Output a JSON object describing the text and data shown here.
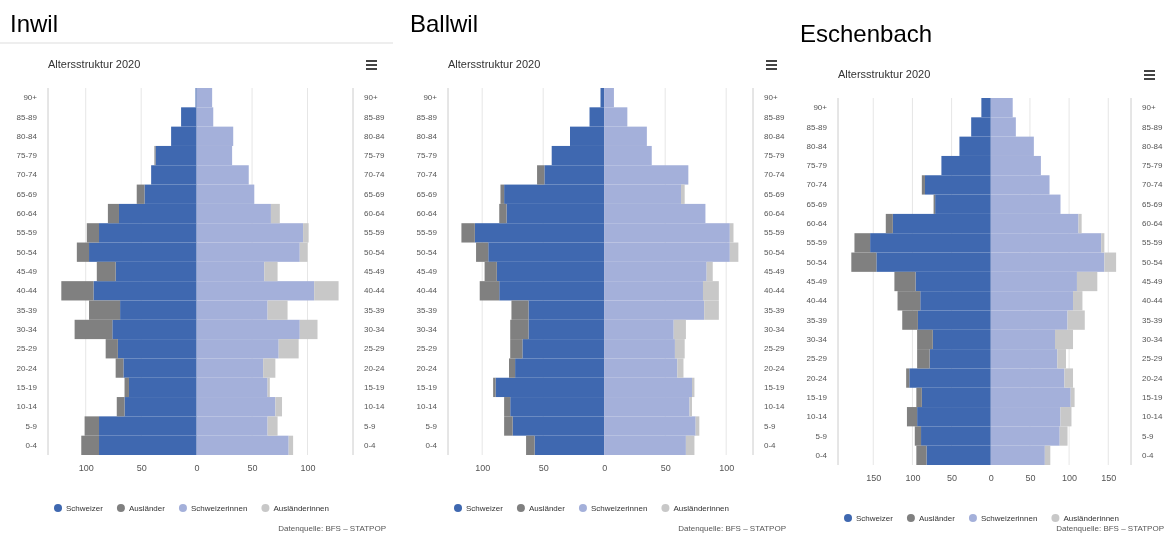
{
  "chart_data": [
    {
      "type": "bar",
      "orientation": "horizontal",
      "stacked": true,
      "title": "Inwil",
      "subtitle": "Altersstruktur 2020",
      "legend": "bottom",
      "grid": "x",
      "categories": [
        "90+",
        "85-89",
        "80-84",
        "75-79",
        "70-74",
        "65-69",
        "60-64",
        "55-59",
        "50-54",
        "45-49",
        "40-44",
        "35-39",
        "30-34",
        "25-29",
        "20-24",
        "15-19",
        "10-14",
        "5-9",
        "0-4"
      ],
      "xlim": [
        -134,
        141
      ],
      "xticks": [
        {
          "value": -100,
          "label": "100"
        },
        {
          "value": -50,
          "label": "50"
        },
        0,
        50,
        100
      ],
      "series": [
        {
          "name": "Schweizer",
          "color": "#3f68b0",
          "values": [
            -1,
            -14,
            -23,
            -37,
            -41,
            -47,
            -70,
            -88,
            -97,
            -73,
            -93,
            -69,
            -76,
            -71,
            -66,
            -61,
            -65,
            -88,
            -88
          ]
        },
        {
          "name": "Ausländer",
          "color": "#808080",
          "values": [
            0,
            0,
            0,
            -1,
            0,
            -7,
            -10,
            -11,
            -11,
            -17,
            -29,
            -28,
            -34,
            -11,
            -7,
            -4,
            -7,
            -13,
            -16
          ]
        },
        {
          "name": "Schweizerinnen",
          "color": "#a4b0da",
          "values": [
            14,
            15,
            33,
            32,
            47,
            52,
            67,
            96,
            93,
            61,
            106,
            64,
            93,
            74,
            60,
            64,
            71,
            64,
            83
          ]
        },
        {
          "name": "Ausländerinnen",
          "color": "#c8c8c8",
          "values": [
            0,
            0,
            0,
            0,
            0,
            0,
            8,
            5,
            7,
            12,
            22,
            18,
            16,
            18,
            11,
            2,
            6,
            9,
            4
          ]
        }
      ],
      "annotations": [
        "Datenquelle: BFS – STATPOP"
      ]
    },
    {
      "type": "bar",
      "orientation": "horizontal",
      "stacked": true,
      "title": "Ballwil",
      "subtitle": "Altersstruktur 2020",
      "legend": "bottom",
      "grid": "x",
      "categories": [
        "90+",
        "85-89",
        "80-84",
        "75-79",
        "70-74",
        "65-69",
        "60-64",
        "55-59",
        "50-54",
        "45-49",
        "40-44",
        "35-39",
        "30-34",
        "25-29",
        "20-24",
        "15-19",
        "10-14",
        "5-9",
        "0-4"
      ],
      "xlim": [
        -128,
        122
      ],
      "xticks": [
        {
          "value": -100,
          "label": "100"
        },
        {
          "value": -50,
          "label": "50"
        },
        0,
        50,
        100
      ],
      "series": [
        {
          "name": "Schweizer",
          "color": "#3f68b0",
          "values": [
            -3,
            -12,
            -28,
            -43,
            -49,
            -82,
            -80,
            -106,
            -95,
            -88,
            -86,
            -62,
            -62,
            -67,
            -73,
            -89,
            -77,
            -75,
            -57
          ]
        },
        {
          "name": "Ausländer",
          "color": "#808080",
          "values": [
            0,
            0,
            0,
            0,
            -6,
            -3,
            -6,
            -11,
            -10,
            -10,
            -16,
            -14,
            -15,
            -10,
            -5,
            -2,
            -5,
            -7,
            -7
          ]
        },
        {
          "name": "Schweizerinnen",
          "color": "#a4b0da",
          "values": [
            8,
            19,
            35,
            39,
            69,
            63,
            83,
            103,
            103,
            84,
            81,
            82,
            57,
            58,
            60,
            72,
            70,
            75,
            67
          ]
        },
        {
          "name": "Ausländerinnen",
          "color": "#c8c8c8",
          "values": [
            0,
            0,
            0,
            0,
            0,
            3,
            0,
            3,
            7,
            5,
            13,
            12,
            10,
            8,
            5,
            2,
            2,
            3,
            7
          ]
        }
      ],
      "annotations": [
        "Datenquelle: BFS – STATPOP"
      ]
    },
    {
      "type": "bar",
      "orientation": "horizontal",
      "stacked": true,
      "title": "Eschenbach",
      "subtitle": "Altersstruktur 2020",
      "legend": "bottom",
      "grid": "x",
      "categories": [
        "90+",
        "85-89",
        "80-84",
        "75-79",
        "70-74",
        "65-69",
        "60-64",
        "55-59",
        "50-54",
        "45-49",
        "40-44",
        "35-39",
        "30-34",
        "25-29",
        "20-24",
        "15-19",
        "10-14",
        "5-9",
        "0-4"
      ],
      "xlim": [
        -195,
        179
      ],
      "xticks": [
        {
          "value": -150,
          "label": "150"
        },
        {
          "value": -100,
          "label": "100"
        },
        {
          "value": -50,
          "label": "50"
        },
        0,
        50,
        100,
        150
      ],
      "series": [
        {
          "name": "Schweizer",
          "color": "#3f68b0",
          "values": [
            -12,
            -25,
            -40,
            -63,
            -84,
            -71,
            -125,
            -154,
            -146,
            -96,
            -90,
            -93,
            -74,
            -78,
            -104,
            -88,
            -94,
            -89,
            -82
          ]
        },
        {
          "name": "Ausländer",
          "color": "#808080",
          "values": [
            0,
            0,
            0,
            0,
            -4,
            -2,
            -9,
            -20,
            -32,
            -27,
            -29,
            -20,
            -20,
            -16,
            -4,
            -7,
            -13,
            -8,
            -13
          ]
        },
        {
          "name": "Schweizerinnen",
          "color": "#a4b0da",
          "values": [
            28,
            32,
            55,
            64,
            75,
            89,
            112,
            141,
            145,
            110,
            105,
            98,
            82,
            85,
            94,
            102,
            89,
            88,
            69
          ]
        },
        {
          "name": "Ausländerinnen",
          "color": "#c8c8c8",
          "values": [
            0,
            0,
            0,
            0,
            0,
            0,
            4,
            4,
            15,
            26,
            12,
            22,
            23,
            11,
            11,
            5,
            14,
            10,
            7
          ]
        }
      ],
      "annotations": [
        "Datenquelle: BFS – STATPOP"
      ]
    }
  ]
}
